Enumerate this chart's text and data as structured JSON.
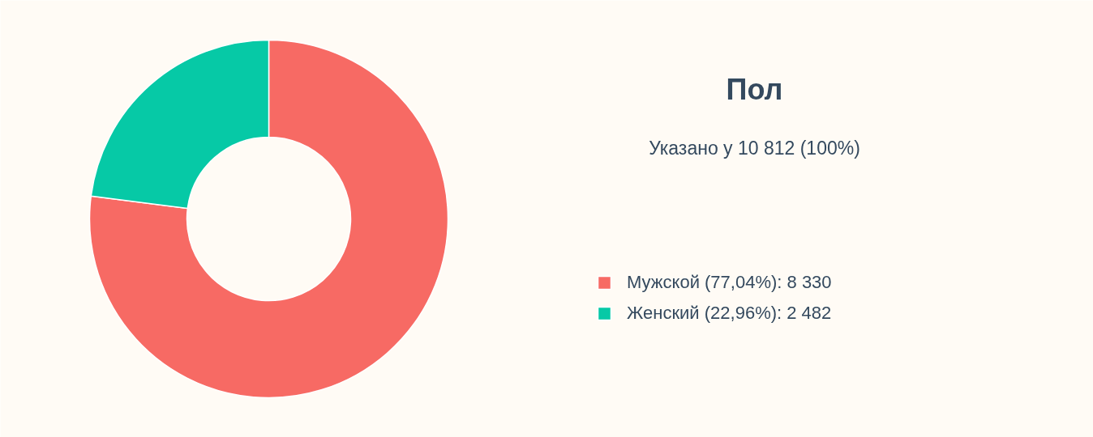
{
  "chart_data": {
    "type": "donut",
    "title": "Пол",
    "subtitle": "Указано у 10 812 (100%)",
    "categories": [
      "Мужской (77,04%): 8 330",
      "Женский (22,96%): 2 482"
    ],
    "values": [
      8330,
      2482
    ],
    "colors": [
      "#f76a64",
      "#06c9a6"
    ],
    "legend": "right"
  }
}
